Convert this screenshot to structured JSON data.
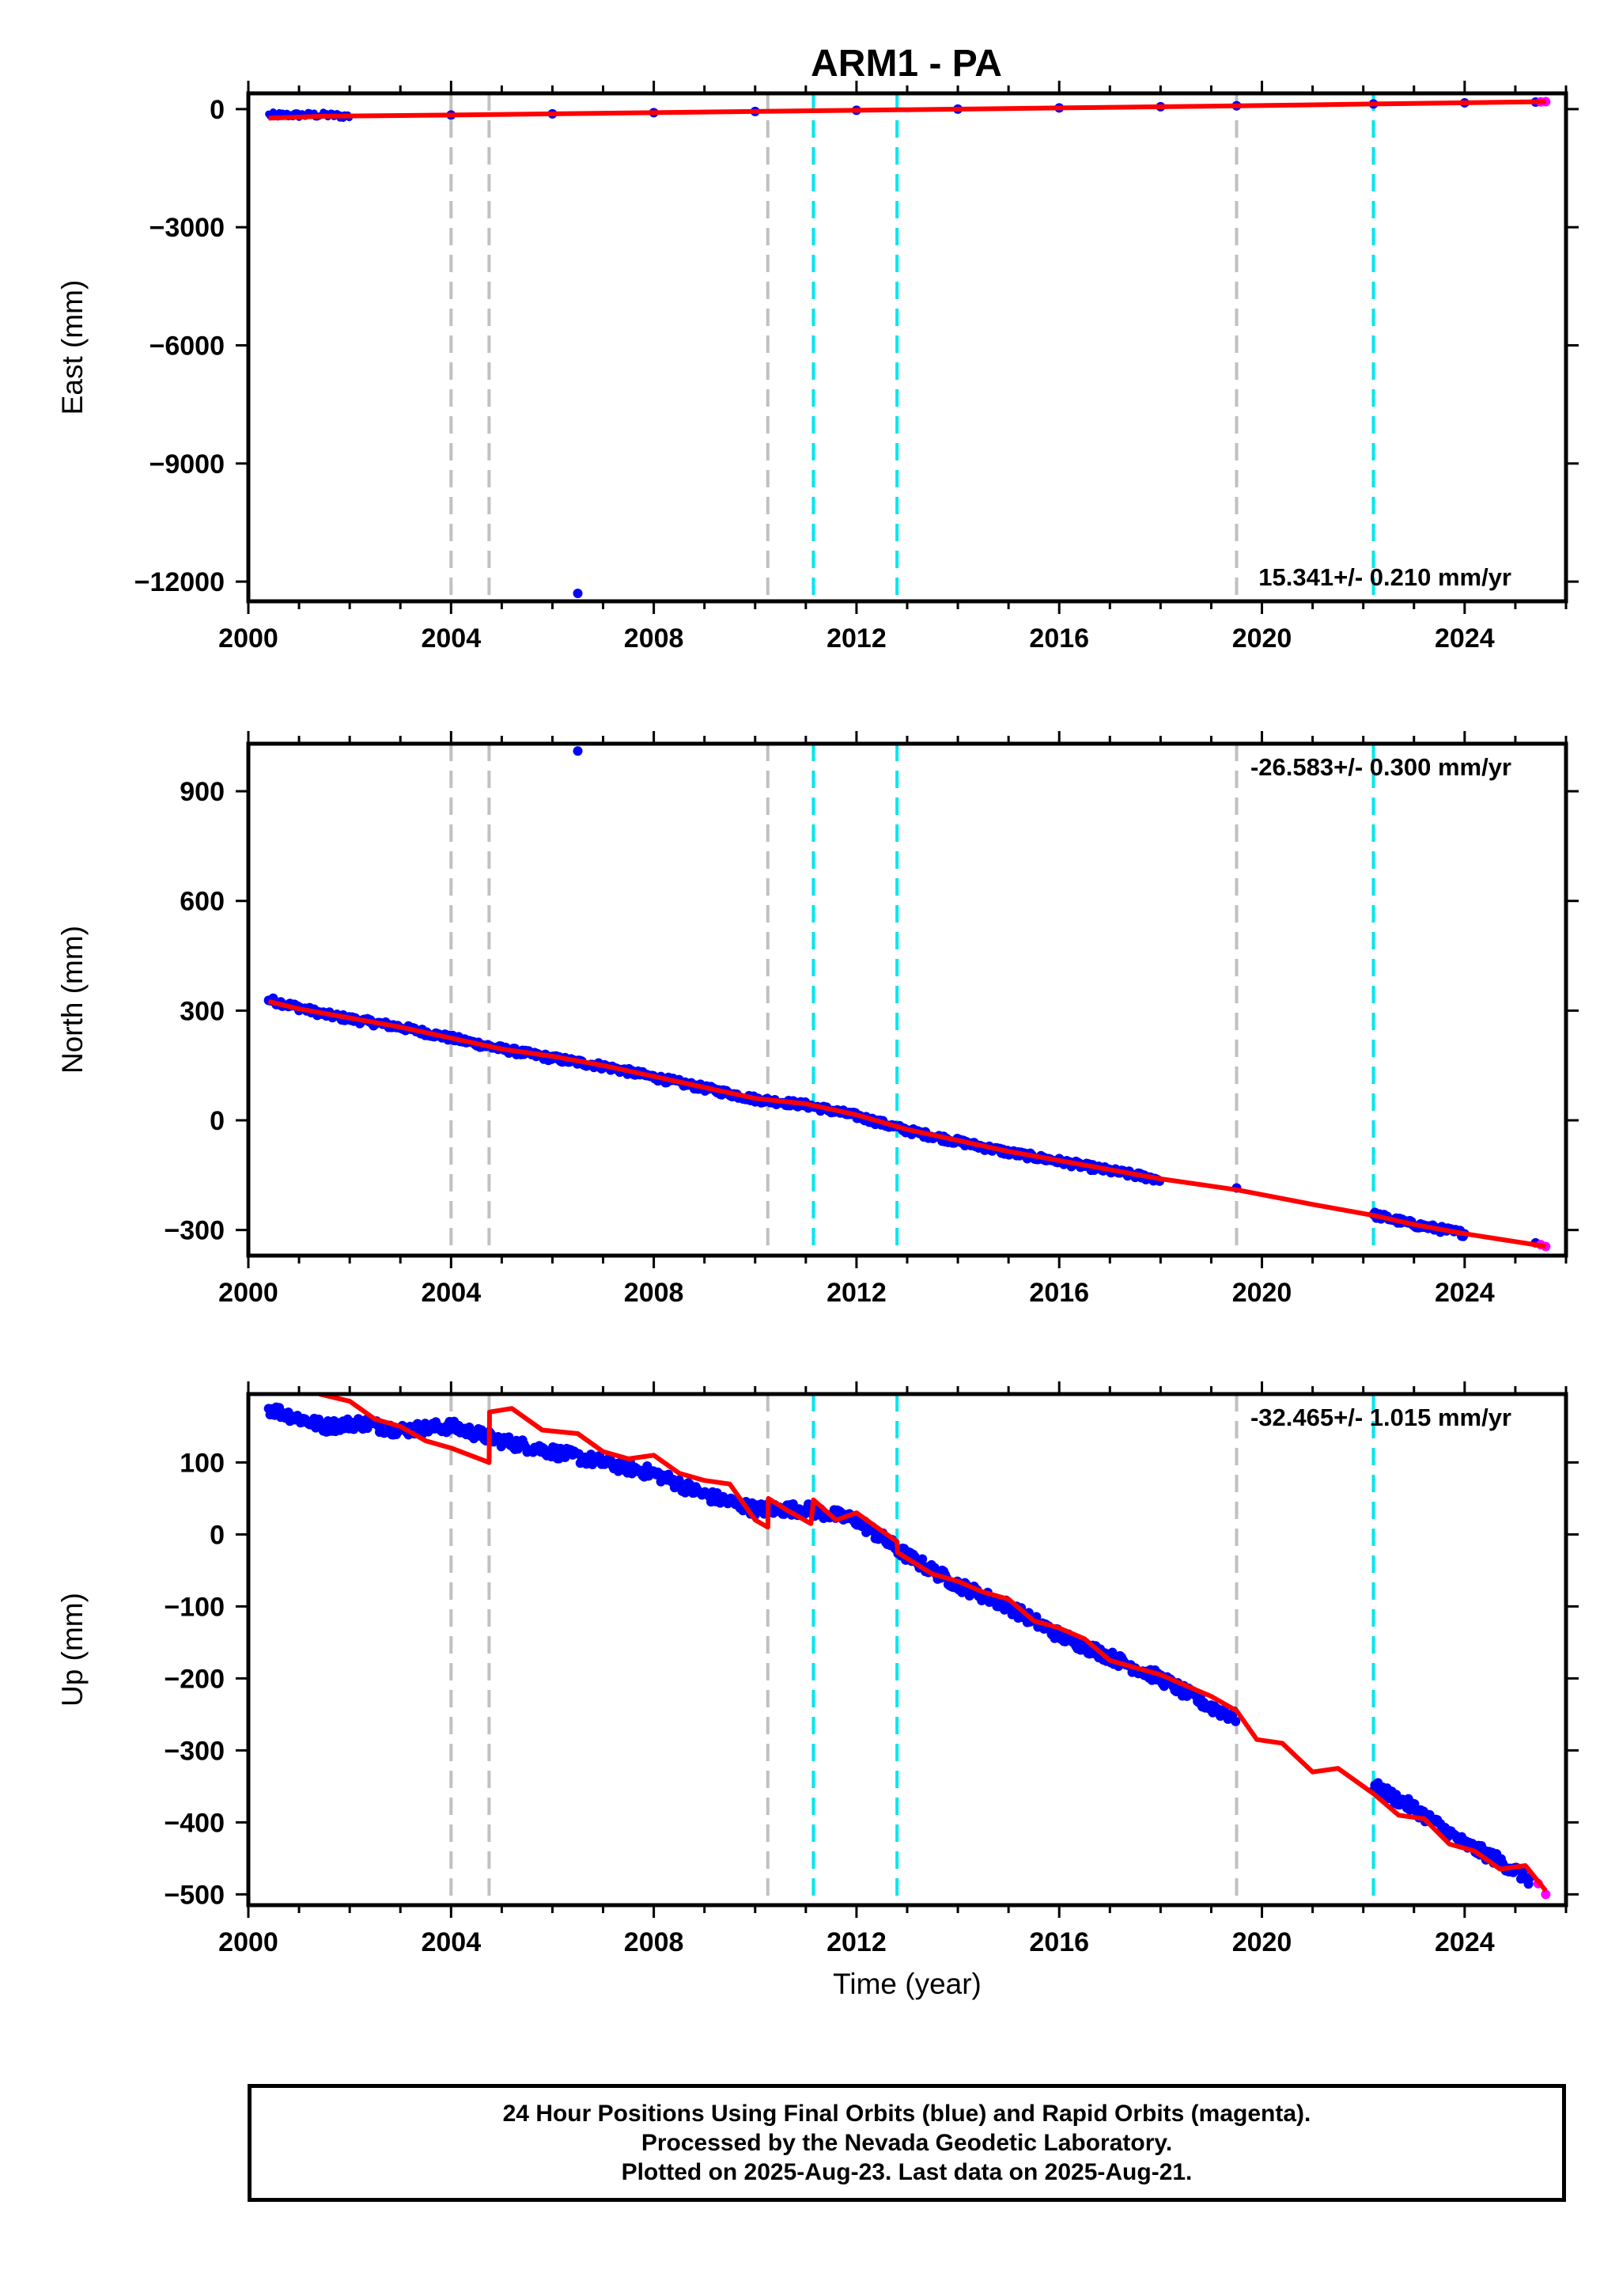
{
  "title": "ARM1 - PA",
  "colors": {
    "final_orbits": "#0000ff",
    "rapid_orbits": "#ff00ff",
    "model": "#ff0000",
    "grey_event": "#c0c0c0",
    "cyan_event": "#00e5ee"
  },
  "caption": {
    "line1": "24 Hour Positions Using Final Orbits (blue) and Rapid Orbits (magenta).",
    "line2": "Processed by the Nevada Geodetic Laboratory.",
    "line3": "Plotted on 2025-Aug-23. Last data on 2025-Aug-21."
  },
  "chart_data": [
    {
      "type": "scatter",
      "component": "East",
      "ylabel": "East (mm)",
      "xlabel": "",
      "xlim": [
        2000.0,
        2026.0
      ],
      "ylim": [
        -12500,
        400
      ],
      "xticks": [
        2000,
        2004,
        2008,
        2012,
        2016,
        2020,
        2024
      ],
      "yticks": [
        0,
        -3000,
        -6000,
        -9000,
        -12000
      ],
      "ytick_labels": [
        "0",
        "−3000",
        "−6000",
        "−9000",
        "−12000"
      ],
      "rate_label": "15.341+/- 0.210 mm/yr",
      "rate_position": "bottom-right",
      "grey_event_lines": [
        2004.0,
        2004.75,
        2010.25,
        2019.5
      ],
      "cyan_event_lines": [
        2011.15,
        2012.8,
        2022.2
      ],
      "model_points": [
        [
          2000.4,
          -230
        ],
        [
          2001.5,
          -180
        ],
        [
          2004,
          -150
        ],
        [
          2008,
          -90
        ],
        [
          2012,
          -30
        ],
        [
          2016,
          30
        ],
        [
          2020,
          90
        ],
        [
          2022.2,
          130
        ],
        [
          2025.6,
          190
        ]
      ],
      "final_points": [
        [
          2000.4,
          -150
        ],
        [
          2001.5,
          -150
        ],
        [
          2002,
          -180
        ],
        [
          2004,
          -150
        ],
        [
          2006,
          -120
        ],
        [
          2008,
          -90
        ],
        [
          2010,
          -60
        ],
        [
          2012,
          -30
        ],
        [
          2014,
          0
        ],
        [
          2016,
          30
        ],
        [
          2018,
          60
        ],
        [
          2019.5,
          85
        ],
        [
          2022.2,
          130
        ],
        [
          2024,
          160
        ],
        [
          2025.4,
          180
        ]
      ],
      "rapid_points": [
        [
          2025.5,
          185
        ],
        [
          2025.6,
          190
        ]
      ],
      "outliers": [
        [
          2006.5,
          -12300
        ]
      ]
    },
    {
      "type": "scatter",
      "component": "North",
      "ylabel": "North (mm)",
      "xlabel": "",
      "xlim": [
        2000.0,
        2026.0
      ],
      "ylim": [
        -370,
        1030
      ],
      "xticks": [
        2000,
        2004,
        2008,
        2012,
        2016,
        2020,
        2024
      ],
      "yticks": [
        900,
        600,
        300,
        0,
        -300
      ],
      "ytick_labels": [
        "900",
        "600",
        "300",
        "0",
        "−300"
      ],
      "rate_label": "-26.583+/- 0.300 mm/yr",
      "rate_position": "top-right",
      "grey_event_lines": [
        2004.0,
        2004.75,
        2010.25,
        2019.5
      ],
      "cyan_event_lines": [
        2011.15,
        2012.8,
        2022.2
      ],
      "model_points": [
        [
          2000.4,
          325
        ],
        [
          2001,
          305
        ],
        [
          2002,
          280
        ],
        [
          2003,
          255
        ],
        [
          2004,
          225
        ],
        [
          2005,
          195
        ],
        [
          2006,
          175
        ],
        [
          2007,
          150
        ],
        [
          2008,
          120
        ],
        [
          2009,
          90
        ],
        [
          2010,
          60
        ],
        [
          2011,
          45
        ],
        [
          2012,
          15
        ],
        [
          2013,
          -25
        ],
        [
          2014,
          -55
        ],
        [
          2015,
          -85
        ],
        [
          2016,
          -110
        ],
        [
          2017,
          -135
        ],
        [
          2018,
          -160
        ],
        [
          2019.5,
          -190
        ],
        [
          2021,
          -230
        ],
        [
          2022.2,
          -260
        ],
        [
          2023,
          -285
        ],
        [
          2024,
          -310
        ],
        [
          2025.6,
          -345
        ]
      ],
      "final_points": [
        [
          2000.4,
          330
        ],
        [
          2001.5,
          290
        ],
        [
          2002.1,
          275
        ],
        [
          2003,
          255
        ],
        [
          2004,
          225
        ],
        [
          2005,
          195
        ],
        [
          2006,
          170
        ],
        [
          2007,
          148
        ],
        [
          2008,
          118
        ],
        [
          2009,
          88
        ],
        [
          2010,
          58
        ],
        [
          2011,
          42
        ],
        [
          2012,
          12
        ],
        [
          2013,
          -28
        ],
        [
          2014,
          -58
        ],
        [
          2015,
          -88
        ],
        [
          2016,
          -112
        ],
        [
          2017,
          -138
        ],
        [
          2018,
          -162
        ],
        [
          2019.5,
          -185
        ],
        [
          2022.2,
          -258
        ],
        [
          2023,
          -285
        ],
        [
          2024,
          -310
        ],
        [
          2025.4,
          -335
        ]
      ],
      "rapid_points": [
        [
          2025.5,
          -340
        ],
        [
          2025.6,
          -345
        ]
      ],
      "outliers": [
        [
          2006.5,
          1010
        ]
      ]
    },
    {
      "type": "scatter",
      "component": "Up",
      "ylabel": "Up (mm)",
      "xlabel": "Time (year)",
      "xlim": [
        2000.0,
        2026.0
      ],
      "ylim": [
        -515,
        195
      ],
      "xticks": [
        2000,
        2004,
        2008,
        2012,
        2016,
        2020,
        2024
      ],
      "yticks": [
        100,
        0,
        -100,
        -200,
        -300,
        -400,
        -500
      ],
      "ytick_labels": [
        "100",
        "0",
        "−100",
        "−200",
        "−300",
        "−400",
        "−500"
      ],
      "rate_label": "-32.465+/- 1.015 mm/yr",
      "rate_position": "top-right",
      "grey_event_lines": [
        2004.0,
        2004.75,
        2010.25,
        2019.5
      ],
      "cyan_event_lines": [
        2011.15,
        2012.8,
        2022.2
      ],
      "model_points": [
        [
          2001.4,
          195
        ],
        [
          2002,
          185
        ],
        [
          2002.5,
          160
        ],
        [
          2003,
          150
        ],
        [
          2003.5,
          130
        ],
        [
          2004,
          120
        ],
        [
          2004.75,
          100
        ],
        [
          2004.76,
          170
        ],
        [
          2005.2,
          175
        ],
        [
          2005.8,
          145
        ],
        [
          2006.5,
          140
        ],
        [
          2007,
          115
        ],
        [
          2007.5,
          105
        ],
        [
          2008,
          110
        ],
        [
          2008.5,
          85
        ],
        [
          2009,
          75
        ],
        [
          2009.5,
          70
        ],
        [
          2010,
          20
        ],
        [
          2010.25,
          10
        ],
        [
          2010.26,
          50
        ],
        [
          2010.6,
          35
        ],
        [
          2011.1,
          15
        ],
        [
          2011.15,
          48
        ],
        [
          2011.6,
          20
        ],
        [
          2012,
          30
        ],
        [
          2012.5,
          5
        ],
        [
          2012.8,
          -10
        ],
        [
          2012.81,
          -25
        ],
        [
          2013.5,
          -55
        ],
        [
          2014,
          -65
        ],
        [
          2014.5,
          -80
        ],
        [
          2015,
          -90
        ],
        [
          2015.5,
          -120
        ],
        [
          2016,
          -130
        ],
        [
          2016.5,
          -145
        ],
        [
          2017,
          -175
        ],
        [
          2017.5,
          -185
        ],
        [
          2018,
          -195
        ],
        [
          2018.5,
          -210
        ],
        [
          2019,
          -225
        ],
        [
          2019.5,
          -245
        ],
        [
          2019.9,
          -285
        ],
        [
          2020.4,
          -290
        ],
        [
          2021,
          -330
        ],
        [
          2021.5,
          -325
        ],
        [
          2022.2,
          -360
        ],
        [
          2022.7,
          -390
        ],
        [
          2023.2,
          -395
        ],
        [
          2023.7,
          -430
        ],
        [
          2024.2,
          -440
        ],
        [
          2024.7,
          -465
        ],
        [
          2025.2,
          -460
        ],
        [
          2025.6,
          -495
        ]
      ],
      "final_points": [
        [
          2000.4,
          175
        ],
        [
          2001.5,
          150
        ],
        [
          2002.2,
          155
        ],
        [
          2003,
          145
        ],
        [
          2004,
          150
        ],
        [
          2004.5,
          140
        ],
        [
          2005,
          130
        ],
        [
          2006,
          115
        ],
        [
          2007,
          100
        ],
        [
          2008,
          85
        ],
        [
          2009,
          55
        ],
        [
          2010,
          35
        ],
        [
          2011,
          35
        ],
        [
          2012,
          20
        ],
        [
          2013,
          -30
        ],
        [
          2014,
          -70
        ],
        [
          2015,
          -100
        ],
        [
          2016,
          -140
        ],
        [
          2017,
          -170
        ],
        [
          2018,
          -200
        ],
        [
          2019,
          -240
        ],
        [
          2019.5,
          -255
        ],
        [
          2022.2,
          -350
        ],
        [
          2023,
          -380
        ],
        [
          2023.6,
          -410
        ],
        [
          2024,
          -430
        ],
        [
          2024.6,
          -450
        ],
        [
          2025.3,
          -480
        ]
      ],
      "rapid_points": [
        [
          2025.45,
          -485
        ],
        [
          2025.6,
          -500
        ]
      ],
      "outliers": []
    }
  ]
}
